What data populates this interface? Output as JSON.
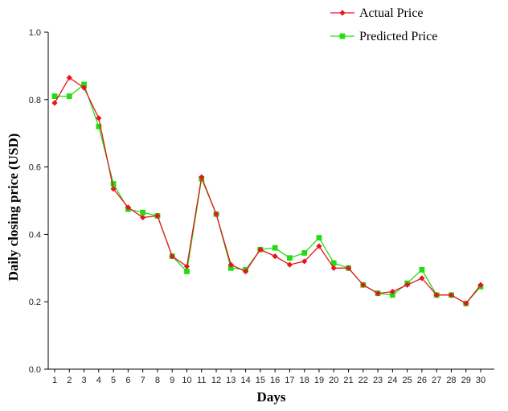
{
  "chart_data": {
    "type": "line",
    "xlabel": "Days",
    "ylabel": "Daily closing price (USD)",
    "x": [
      1,
      2,
      3,
      4,
      5,
      6,
      7,
      8,
      9,
      10,
      11,
      12,
      13,
      14,
      15,
      16,
      17,
      18,
      19,
      20,
      21,
      22,
      23,
      24,
      25,
      26,
      27,
      28,
      29,
      30
    ],
    "ylim": [
      0,
      1.0
    ],
    "yticks": [
      "0.0",
      "0.2",
      "0.4",
      "0.6",
      "0.8",
      "1.0"
    ],
    "grid": false,
    "legend_position": "top-right",
    "series": [
      {
        "name": "Actual Price",
        "color": "#e8141e",
        "marker": "diamond",
        "values": [
          0.79,
          0.865,
          0.835,
          0.745,
          0.535,
          0.48,
          0.45,
          0.455,
          0.335,
          0.305,
          0.57,
          0.46,
          0.31,
          0.29,
          0.355,
          0.335,
          0.31,
          0.32,
          0.365,
          0.3,
          0.3,
          0.25,
          0.225,
          0.23,
          0.25,
          0.27,
          0.22,
          0.22,
          0.195,
          0.25
        ]
      },
      {
        "name": "Predicted Price",
        "color": "#22dd11",
        "marker": "square",
        "values": [
          0.81,
          0.81,
          0.845,
          0.72,
          0.55,
          0.475,
          0.465,
          0.455,
          0.335,
          0.29,
          0.565,
          0.46,
          0.3,
          0.295,
          0.355,
          0.36,
          0.33,
          0.345,
          0.39,
          0.315,
          0.3,
          0.25,
          0.225,
          0.22,
          0.255,
          0.295,
          0.22,
          0.22,
          0.195,
          0.245
        ]
      }
    ]
  }
}
